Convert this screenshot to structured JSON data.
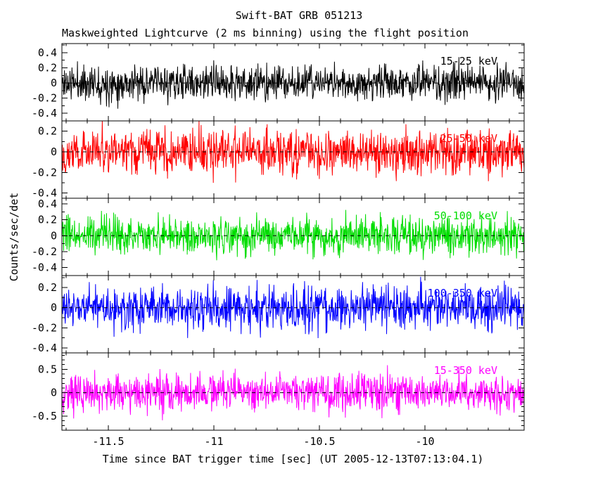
{
  "chart_data": {
    "type": "line",
    "title": "Swift-BAT GRB 051213",
    "subtitle": "Maskweighted Lightcurve (2 ms binning) using the flight position",
    "xlabel": "Time since BAT trigger time [sec] (UT 2005-12-13T07:13:04.1)",
    "ylabel": "Counts/sec/det",
    "xlim": [
      -11.72,
      -9.53
    ],
    "xticks": {
      "values": [
        -11.5,
        -11,
        -10.5,
        -10
      ],
      "labels": [
        "-11.5",
        "-11",
        "-10.5",
        "-10"
      ]
    },
    "x_minor_step": 0.1,
    "y_minor_step": 0.1,
    "grid": false,
    "legend_position": "none",
    "background_color": "#ffffff",
    "axis_color": "#000000",
    "zero_line": {
      "style": "dashed",
      "color": "#000000",
      "y": 0
    },
    "series_model": "zero-mean gaussian detector noise per panel, no burst signal visible; amplitude given by noise_sigma",
    "panels": [
      {
        "name": "band-15-25",
        "label": "15-25 keV",
        "color": "#000000",
        "ylim": [
          -0.5,
          0.52
        ],
        "yticks": {
          "values": [
            -0.4,
            -0.2,
            0,
            0.2,
            0.4
          ],
          "labels": [
            "-0.4",
            "-0.2",
            "0",
            "0.2",
            "0.4"
          ]
        },
        "mean": 0,
        "noise_sigma": 0.115,
        "n_points": 1100,
        "seed": 11
      },
      {
        "name": "band-25-50",
        "label": "25-50 keV",
        "color": "#ff0000",
        "ylim": [
          -0.45,
          0.3
        ],
        "yticks": {
          "values": [
            -0.4,
            -0.2,
            0,
            0.2
          ],
          "labels": [
            "-0.4",
            "-0.2",
            "0",
            "0.2"
          ]
        },
        "mean": 0,
        "noise_sigma": 0.105,
        "n_points": 1100,
        "seed": 22
      },
      {
        "name": "band-50-100",
        "label": "50-100 keV",
        "color": "#00dd00",
        "ylim": [
          -0.5,
          0.47
        ],
        "yticks": {
          "values": [
            -0.4,
            -0.2,
            0,
            0.2,
            0.4
          ],
          "labels": [
            "-0.4",
            "-0.2",
            "0",
            "0.2",
            "0.4"
          ]
        },
        "mean": 0,
        "noise_sigma": 0.115,
        "n_points": 1100,
        "seed": 33
      },
      {
        "name": "band-100-350",
        "label": "100-350 keV",
        "color": "#0000ff",
        "ylim": [
          -0.45,
          0.32
        ],
        "yticks": {
          "values": [
            -0.4,
            -0.2,
            0,
            0.2
          ],
          "labels": [
            "-0.4",
            "-0.2",
            "0",
            "0.2"
          ]
        },
        "mean": 0,
        "noise_sigma": 0.105,
        "n_points": 1100,
        "seed": 44
      },
      {
        "name": "band-15-350",
        "label": "15-350 keV",
        "color": "#ff00ff",
        "ylim": [
          -0.8,
          0.85
        ],
        "yticks": {
          "values": [
            -0.5,
            0,
            0.5
          ],
          "labels": [
            "-0.5",
            "0",
            "0.5"
          ]
        },
        "mean": 0,
        "noise_sigma": 0.2,
        "n_points": 1100,
        "seed": 55
      }
    ]
  }
}
